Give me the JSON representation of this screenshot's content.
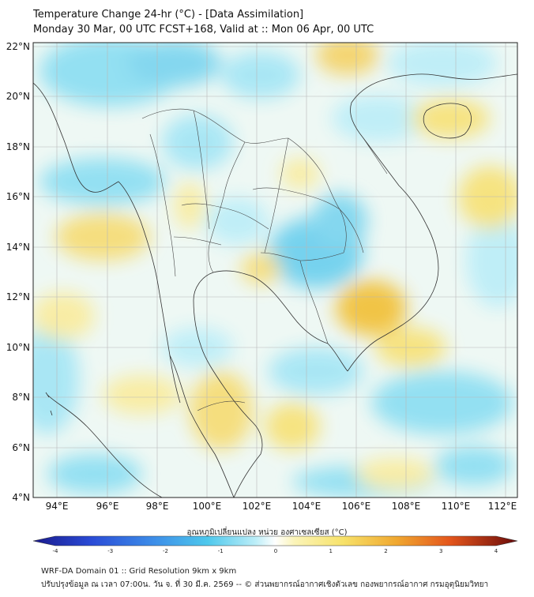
{
  "title_line1": "Temperature Change 24-hr (°C) - [Data Assimilation]",
  "title_line2": "Monday 30 Mar, 00 UTC FCST+168, Valid at :: Mon 06 Apr, 00 UTC",
  "map": {
    "lat_labels": [
      "22°N",
      "20°N",
      "18°N",
      "16°N",
      "14°N",
      "12°N",
      "10°N",
      "8°N",
      "6°N",
      "4°N"
    ],
    "lon_labels": [
      "94°E",
      "96°E",
      "98°E",
      "100°E",
      "102°E",
      "104°E",
      "106°E",
      "108°E",
      "110°E",
      "112°E"
    ],
    "lat_range": [
      4,
      22.2
    ],
    "lon_range": [
      93,
      112.3
    ]
  },
  "colorbar": {
    "title": "อุณหภูมิเปลี่ยนแปลง หน่วย องศาเซลเซียส (°C)",
    "ticks": [
      "-4",
      "-3",
      "-2",
      "-1",
      "0",
      "1",
      "2",
      "3",
      "4"
    ],
    "range": [
      -4,
      4
    ]
  },
  "footer_line1": "WRF-DA Domain 01 :: Grid Resolution 9km x 9km",
  "footer_line2": "ปรับปรุงข้อมูล ณ เวลา 07:00น. วัน จ. ที่ 30 มี.ค. 2569 -- © ส่วนพยากรณ์อากาศเชิงตัวเลข กองพยากรณ์อากาศ กรมอุตุนิยมวิทยา",
  "colors": {
    "warm": "#f7e27a",
    "warm_strong": "#f2c23c",
    "cool": "#8fdff2",
    "cool_strong": "#5cc8ea",
    "neutral": "#f4f8f4"
  }
}
